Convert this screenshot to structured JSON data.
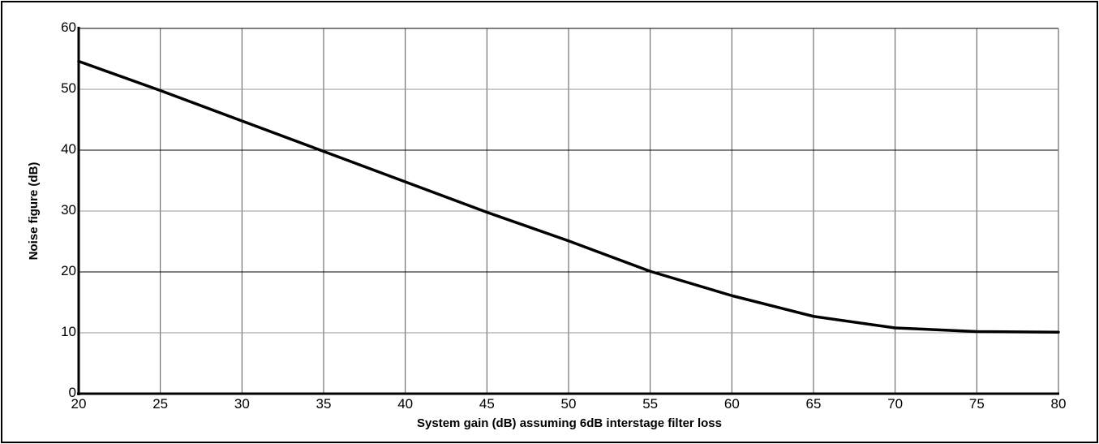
{
  "chart_data": {
    "type": "line",
    "title": "",
    "xlabel": "System gain (dB) assuming 6dB interstage filter loss",
    "ylabel": "Noise figure (dB)",
    "xlim": [
      20,
      80
    ],
    "ylim": [
      0,
      60
    ],
    "x_ticks": [
      "20",
      "25",
      "30",
      "35",
      "40",
      "45",
      "50",
      "55",
      "60",
      "65",
      "70",
      "75",
      "80"
    ],
    "y_ticks": [
      "0",
      "10",
      "20",
      "30",
      "40",
      "50",
      "60"
    ],
    "grid": true,
    "legend": "none",
    "series": [
      {
        "x": [
          20,
          25,
          30,
          35,
          40,
          45,
          50,
          55,
          60,
          65,
          70,
          75,
          80
        ],
        "y": [
          54.6,
          49.8,
          44.8,
          39.8,
          34.8,
          29.8,
          25.1,
          20.1,
          16.1,
          12.7,
          10.8,
          10.2,
          10.1
        ]
      }
    ],
    "colors": {
      "line": "#000000",
      "grid_major": "#000000",
      "grid_minor": "#999999",
      "axis": "#000000"
    }
  }
}
